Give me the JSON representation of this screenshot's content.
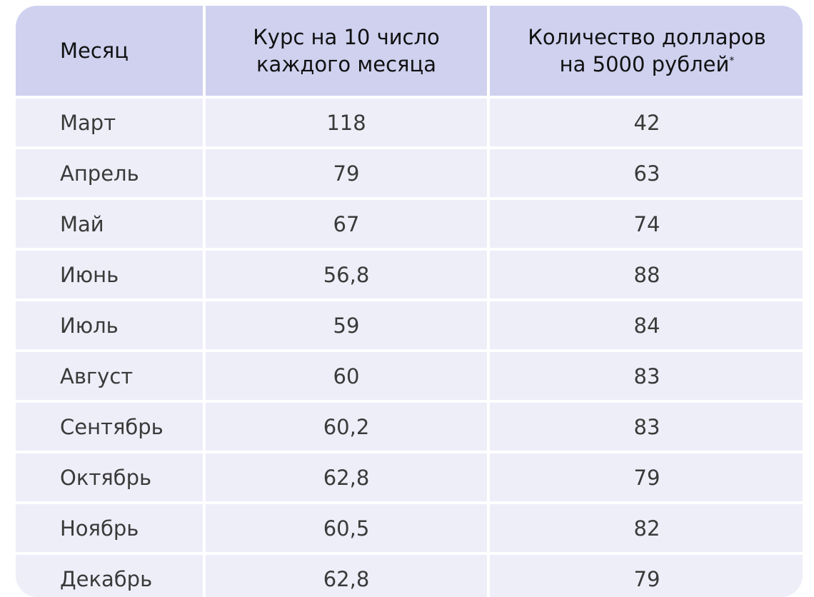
{
  "table": {
    "headers": {
      "month": "Месяц",
      "rate_line1": "Курс на 10 число",
      "rate_line2": "каждого месяца",
      "dollars_line1": "Количество долларов",
      "dollars_line2": "на 5000 рублей",
      "footnote_mark": "*"
    },
    "rows": [
      {
        "month": "Март",
        "rate": "118",
        "dollars": "42"
      },
      {
        "month": "Апрель",
        "rate": "79",
        "dollars": "63"
      },
      {
        "month": "Май",
        "rate": "67",
        "dollars": "74"
      },
      {
        "month": "Июнь",
        "rate": "56,8",
        "dollars": "88"
      },
      {
        "month": "Июль",
        "rate": "59",
        "dollars": "84"
      },
      {
        "month": "Август",
        "rate": "60",
        "dollars": "83"
      },
      {
        "month": "Сентябрь",
        "rate": "60,2",
        "dollars": "83"
      },
      {
        "month": "Октябрь",
        "rate": "62,8",
        "dollars": "79"
      },
      {
        "month": "Ноябрь",
        "rate": "60,5",
        "dollars": "82"
      },
      {
        "month": "Декабрь",
        "rate": "62,8",
        "dollars": "79"
      }
    ]
  },
  "colors": {
    "header_bg": "#cfd1ef",
    "row_bg": "#eeeef9"
  }
}
